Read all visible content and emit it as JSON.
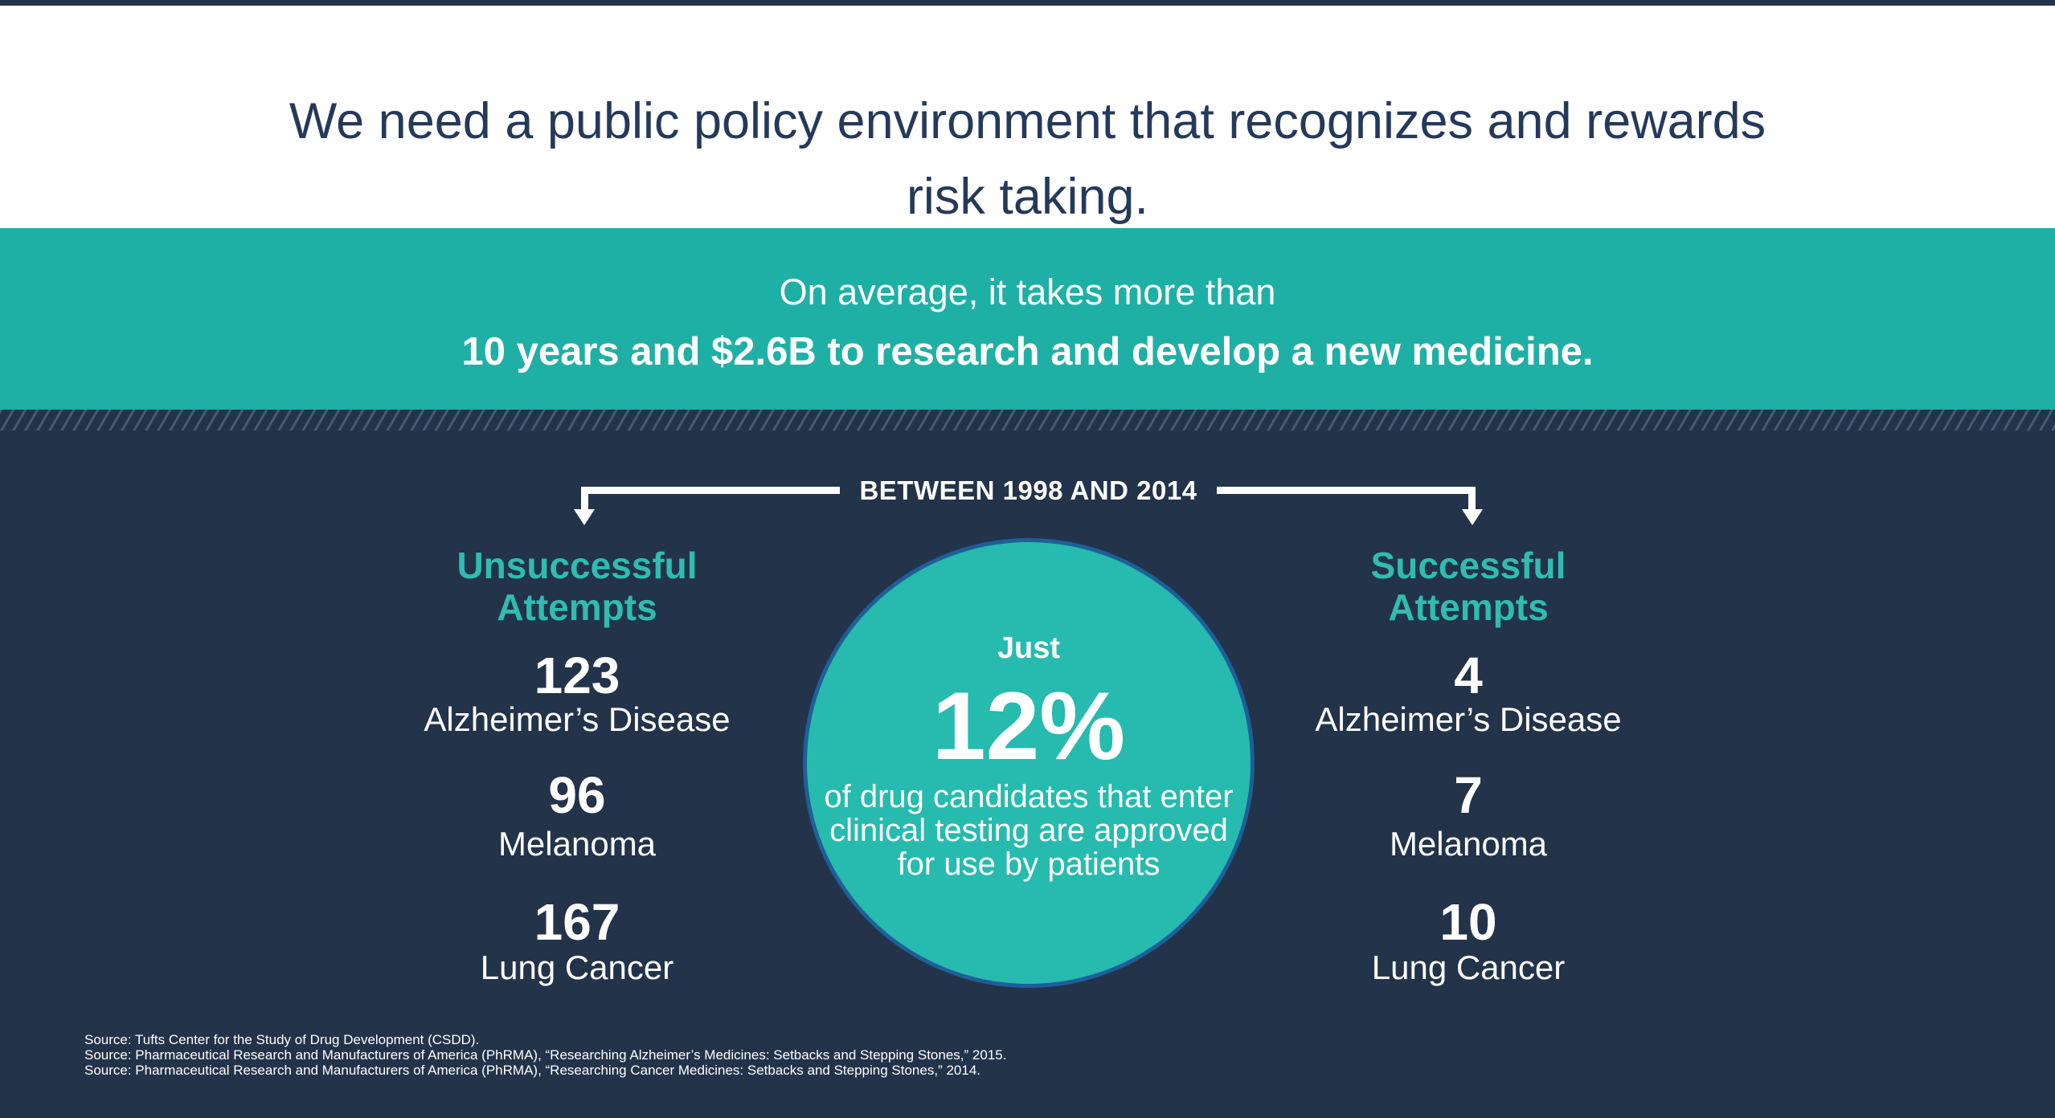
{
  "slide_title": {
    "line1": "We need a public policy environment that recognizes and rewards",
    "line2": "risk taking."
  },
  "banner": {
    "line1": "On average, it takes more than",
    "line2": "10 years and $2.6B to research and develop a new medicine."
  },
  "timeline": {
    "label": "BETWEEN 1998 AND 2014"
  },
  "left_column": {
    "heading_line1": "Unsuccessful",
    "heading_line2": "Attempts",
    "items": [
      {
        "value": "123",
        "label": "Alzheimer’s Disease"
      },
      {
        "value": "96",
        "label": "Melanoma"
      },
      {
        "value": "167",
        "label": "Lung Cancer"
      }
    ]
  },
  "right_column": {
    "heading_line1": "Successful",
    "heading_line2": "Attempts",
    "items": [
      {
        "value": "4",
        "label": "Alzheimer’s Disease"
      },
      {
        "value": "7",
        "label": "Melanoma"
      },
      {
        "value": "10",
        "label": "Lung Cancer"
      }
    ]
  },
  "circle": {
    "intro": "Just",
    "stat": "12%",
    "desc_line1": "of drug candidates that enter",
    "desc_line2": "clinical testing are approved",
    "desc_line3": "for use by patients"
  },
  "sources": {
    "line1": "Source: Tufts Center for the Study of Drug Development (CSDD).",
    "line2": "Source: Pharmaceutical Research and Manufacturers of America (PhRMA), “Researching Alzheimer’s Medicines: Setbacks and Stepping Stones,” 2015.",
    "line3": "Source: Pharmaceutical Research and Manufacturers of America (PhRMA), “Researching Cancer Medicines: Setbacks and Stepping Stones,” 2014."
  },
  "colors": {
    "navy": "#22334A",
    "teal_banner": "#1FB0A5",
    "teal_circle": "#26BBAE",
    "circle_border_blue": "#1E5F99",
    "teal_heading": "#30BCAF",
    "title_text_navy": "#25395B",
    "white": "#FFFFFF"
  },
  "chart_data": {
    "type": "table",
    "title": "Between 1998 and 2014: drug development attempts",
    "categories": [
      "Alzheimer’s Disease",
      "Melanoma",
      "Lung Cancer"
    ],
    "series": [
      {
        "name": "Unsuccessful Attempts",
        "values": [
          123,
          96,
          167
        ]
      },
      {
        "name": "Successful Attempts",
        "values": [
          4,
          7,
          10
        ]
      }
    ],
    "key_stat": {
      "value_percent": 12,
      "description": "of drug candidates that enter clinical testing are approved for use by patients"
    },
    "context": {
      "average_time_years": 10,
      "average_cost": "$2.6B"
    },
    "legend_position": "none",
    "grid": false
  }
}
